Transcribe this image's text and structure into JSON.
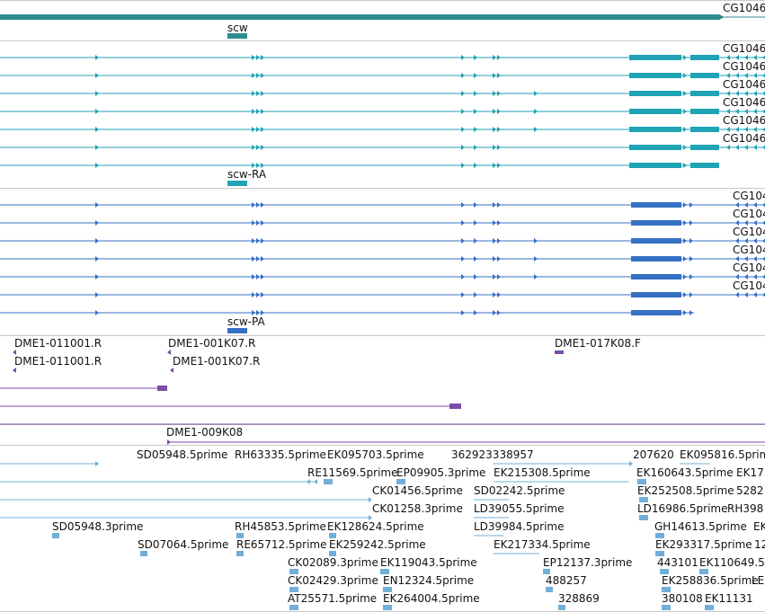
{
  "colors": {
    "teal_dark": "#2e8b8f",
    "teal": "#1fa3b5",
    "blue": "#3570c5",
    "purple": "#7a4da8",
    "light_blue": "#72afd8",
    "separator": "#c8c8c8"
  },
  "gene_track": {
    "gene_label": "scw",
    "right_label": "CG1046"
  },
  "transcript_track_1": {
    "label": "scw-RA",
    "right_labels": [
      "CG1046",
      "CG1046",
      "CG1046",
      "CG1046",
      "CG1046",
      "CG1046"
    ]
  },
  "transcript_track_2": {
    "label": "scw-PA",
    "right_labels": [
      "CG104",
      "CG104",
      "CG104",
      "CG104",
      "CG104",
      "CG104"
    ]
  },
  "clone_track": {
    "labels": [
      "DME1-011001.R",
      "DME1-001K07.R",
      "DME1-017K08.F",
      "DME1-011001.R",
      "DME1-001K07.R",
      "DME1-009K08"
    ]
  },
  "est_track": {
    "labels": [
      "SD05948.5prime",
      "RH63335.5prime",
      "EK095703.5prime",
      "362923338957",
      "207620",
      "EK095816.5prime",
      "RE11569.5prime",
      "EP09905.3prime",
      "EK215308.5prime",
      "EK160643.5prime",
      "EK17",
      "CK01456.5prime",
      "SD02242.5prime",
      "EK252508.5prime",
      "5282",
      "CK01258.3prime",
      "LD39055.5prime",
      "LD16986.5prime",
      "RH398",
      "SD05948.3prime",
      "RH45853.5prime",
      "EK128624.5prime",
      "LD39984.5prime",
      "GH14613.5prime",
      "EK",
      "SD07064.5prime",
      "RE65712.5prime",
      "EK259242.5prime",
      "EK217334.5prime",
      "EK293317.5prime",
      "12",
      "CK02089.3prime",
      "EK119043.5prime",
      "EP12137.3prime",
      "443101",
      "EK110649.5",
      "CK02429.3prime",
      "EN12324.5prime",
      "488257",
      "EK258836.5prime",
      "LE",
      "AT25571.5prime",
      "EK264004.5prime",
      "328869",
      "380108",
      "EK11131"
    ]
  }
}
